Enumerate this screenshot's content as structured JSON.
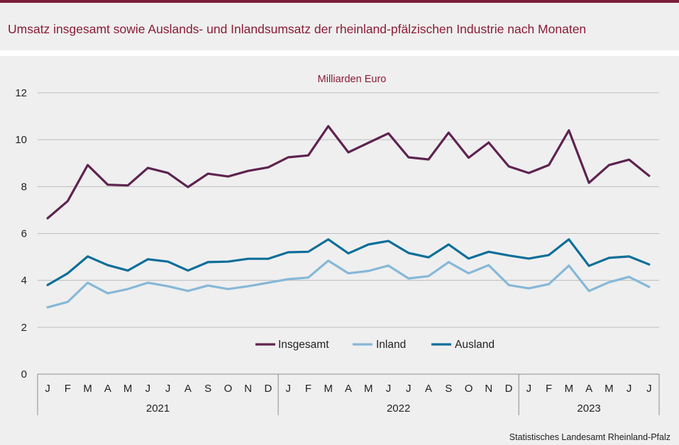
{
  "header": {
    "title": "Umsatz insgesamt sowie Auslands- und Inlandsumsatz der rheinland-pfälzischen Industrie nach Monaten"
  },
  "footer": {
    "source": "Statistisches Landesamt  Rheinland-Pfalz"
  },
  "chart_data": {
    "type": "line",
    "unit_label": "Milliarden Euro",
    "ylim": [
      0,
      12
    ],
    "yticks": [
      0,
      2,
      4,
      6,
      8,
      10,
      12
    ],
    "grid": true,
    "legend_position": "bottom-center",
    "categories": [
      "J",
      "F",
      "M",
      "A",
      "M",
      "J",
      "J",
      "A",
      "S",
      "O",
      "N",
      "D",
      "J",
      "F",
      "M",
      "A",
      "M",
      "J",
      "J",
      "A",
      "S",
      "O",
      "N",
      "D",
      "J",
      "F",
      "M",
      "A",
      "M",
      "J",
      "J"
    ],
    "years": [
      {
        "label": "2021",
        "months": 12
      },
      {
        "label": "2022",
        "months": 12
      },
      {
        "label": "2023",
        "months": 7
      }
    ],
    "series": [
      {
        "name": "Insgesamt",
        "color": "#5e2350",
        "values": [
          6.65,
          7.38,
          8.92,
          8.08,
          8.05,
          8.8,
          8.58,
          7.98,
          8.55,
          8.43,
          8.67,
          8.82,
          9.25,
          9.33,
          10.58,
          9.46,
          9.87,
          10.27,
          9.25,
          9.16,
          10.3,
          9.23,
          9.88,
          8.86,
          8.58,
          8.92,
          10.4,
          8.16,
          8.92,
          9.15,
          8.46
        ]
      },
      {
        "name": "Inland",
        "color": "#86b8d8",
        "values": [
          2.85,
          3.08,
          3.9,
          3.45,
          3.63,
          3.9,
          3.75,
          3.55,
          3.78,
          3.63,
          3.75,
          3.9,
          4.05,
          4.12,
          4.84,
          4.3,
          4.4,
          4.63,
          4.08,
          4.18,
          4.78,
          4.3,
          4.65,
          3.8,
          3.66,
          3.84,
          4.63,
          3.55,
          3.92,
          4.15,
          3.72
        ]
      },
      {
        "name": "Ausland",
        "color": "#0d6e99",
        "values": [
          3.8,
          4.3,
          5.02,
          4.65,
          4.42,
          4.9,
          4.8,
          4.42,
          4.78,
          4.8,
          4.92,
          4.92,
          5.2,
          5.22,
          5.75,
          5.15,
          5.53,
          5.68,
          5.17,
          4.98,
          5.53,
          4.93,
          5.22,
          5.06,
          4.93,
          5.08,
          5.75,
          4.62,
          4.96,
          5.02,
          4.68
        ]
      }
    ]
  }
}
